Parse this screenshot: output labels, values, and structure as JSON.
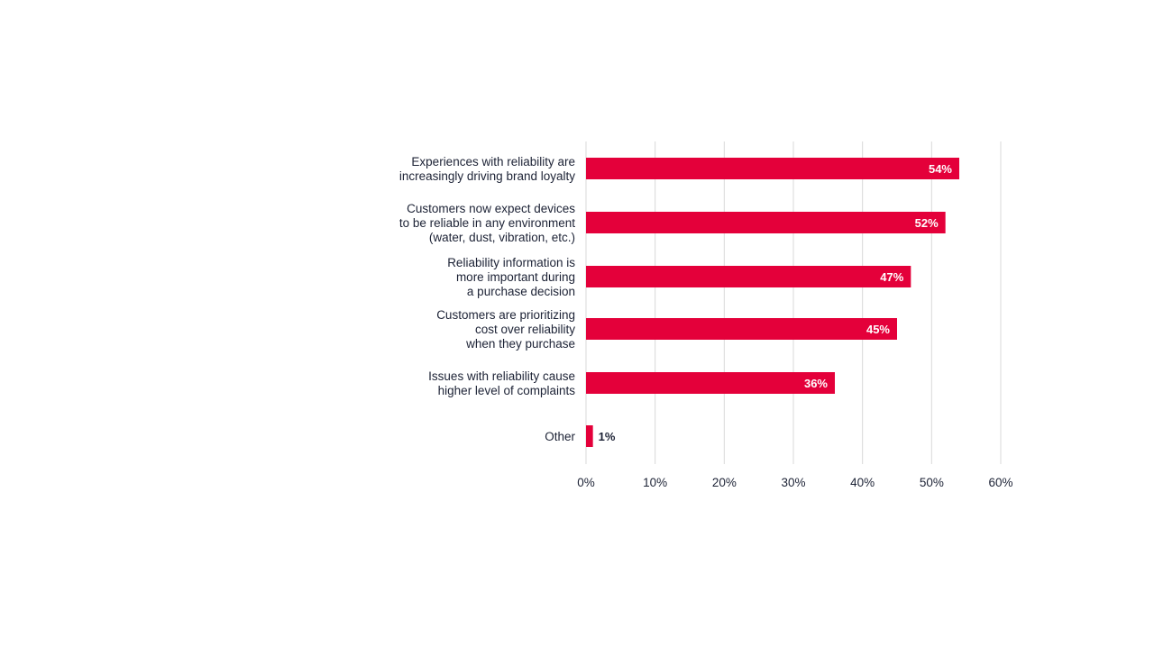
{
  "chart_data": {
    "type": "bar",
    "orientation": "horizontal",
    "categories": [
      [
        "Experiences with reliability are",
        "increasingly driving brand loyalty"
      ],
      [
        "Customers now expect devices",
        "to be reliable in any environment",
        "(water, dust, vibration, etc.)"
      ],
      [
        "Reliability information is",
        "more important during",
        "a purchase decision"
      ],
      [
        "Customers are prioritizing",
        "cost over reliability",
        "when they purchase"
      ],
      [
        "Issues with reliability cause",
        "higher level of complaints"
      ],
      [
        "Other"
      ]
    ],
    "values": [
      54,
      52,
      47,
      45,
      36,
      1
    ],
    "data_labels": [
      "54%",
      "52%",
      "47%",
      "45%",
      "36%",
      "1%"
    ],
    "xlim": [
      0,
      60
    ],
    "xticks": [
      0,
      10,
      20,
      30,
      40,
      50,
      60
    ],
    "xtick_labels": [
      "0%",
      "10%",
      "20%",
      "30%",
      "40%",
      "50%",
      "60%"
    ],
    "grid": "vertical",
    "colors": {
      "bar": "#e4003a",
      "grid": "#d9d9d9",
      "text": "#1c2235",
      "label_inside": "#ffffff"
    }
  }
}
